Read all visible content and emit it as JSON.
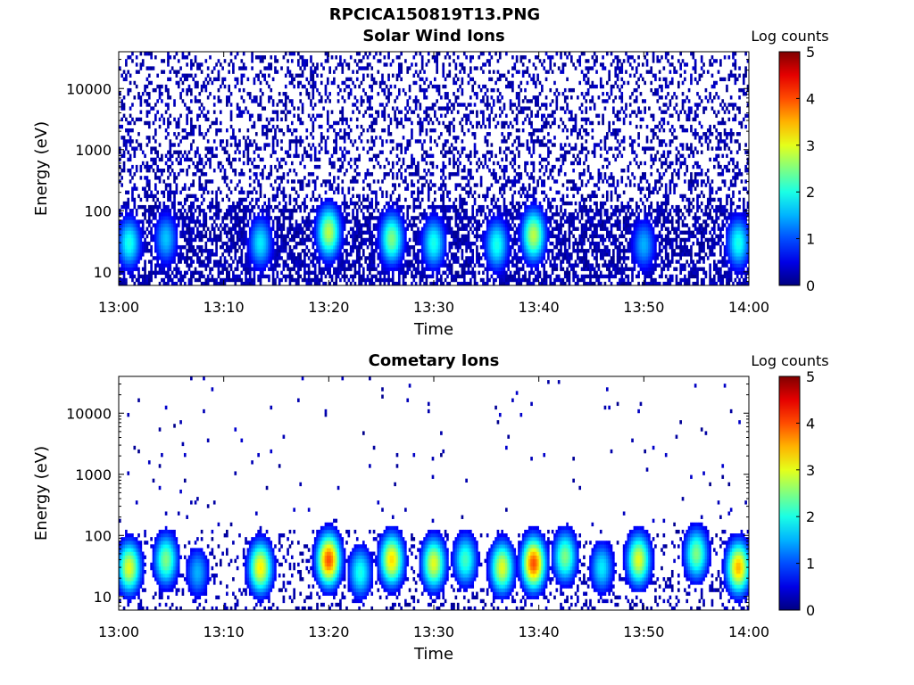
{
  "figure": {
    "title": "RPCICA150819T13.PNG"
  },
  "chart_data": [
    {
      "type": "heatmap",
      "title": "Solar Wind Ions",
      "xlabel": "Time",
      "ylabel": "Energy (eV)",
      "x_ticks": [
        "13:00",
        "13:10",
        "13:20",
        "13:30",
        "13:40",
        "13:50",
        "14:00"
      ],
      "xlim": [
        "13:00",
        "14:00"
      ],
      "y_scale": "log",
      "y_ticks": [
        "10",
        "100",
        "1000",
        "10000"
      ],
      "ylim": [
        6,
        40000
      ],
      "colorbar": {
        "label": "Log counts",
        "range": [
          0,
          5
        ],
        "ticks": [
          "0",
          "1",
          "2",
          "3",
          "4",
          "5"
        ],
        "colormap": "jet"
      },
      "features": {
        "background_density": 0.34,
        "low_energy_bursts": [
          {
            "time_min": 1,
            "energy_eV": 30,
            "peak_log_counts": 2.0
          },
          {
            "time_min": 4.5,
            "energy_eV": 35,
            "peak_log_counts": 1.6
          },
          {
            "time_min": 13.5,
            "energy_eV": 30,
            "peak_log_counts": 1.8
          },
          {
            "time_min": 20,
            "energy_eV": 45,
            "peak_log_counts": 2.8
          },
          {
            "time_min": 26,
            "energy_eV": 35,
            "peak_log_counts": 2.5
          },
          {
            "time_min": 30,
            "energy_eV": 30,
            "peak_log_counts": 2.0
          },
          {
            "time_min": 36,
            "energy_eV": 28,
            "peak_log_counts": 2.0
          },
          {
            "time_min": 39.5,
            "energy_eV": 40,
            "peak_log_counts": 2.8
          },
          {
            "time_min": 50,
            "energy_eV": 28,
            "peak_log_counts": 1.5
          },
          {
            "time_min": 59,
            "energy_eV": 30,
            "peak_log_counts": 2.0
          }
        ]
      }
    },
    {
      "type": "heatmap",
      "title": "Cometary Ions",
      "xlabel": "Time",
      "ylabel": "Energy (eV)",
      "x_ticks": [
        "13:00",
        "13:10",
        "13:20",
        "13:30",
        "13:40",
        "13:50",
        "14:00"
      ],
      "xlim": [
        "13:00",
        "14:00"
      ],
      "y_scale": "log",
      "y_ticks": [
        "10",
        "100",
        "1000",
        "10000"
      ],
      "ylim": [
        6,
        40000
      ],
      "colorbar": {
        "label": "Log counts",
        "range": [
          0,
          5
        ],
        "ticks": [
          "0",
          "1",
          "2",
          "3",
          "4",
          "5"
        ],
        "colormap": "jet"
      },
      "features": {
        "background_density": 0.25,
        "high_energy_scatter_density": 0.012,
        "low_energy_bursts": [
          {
            "time_min": 1,
            "energy_eV": 30,
            "peak_log_counts": 3.0
          },
          {
            "time_min": 4.5,
            "energy_eV": 40,
            "peak_log_counts": 2.5
          },
          {
            "time_min": 7.5,
            "energy_eV": 25,
            "peak_log_counts": 1.5
          },
          {
            "time_min": 13.5,
            "energy_eV": 30,
            "peak_log_counts": 3.2
          },
          {
            "time_min": 20,
            "energy_eV": 40,
            "peak_log_counts": 4.0
          },
          {
            "time_min": 23,
            "energy_eV": 25,
            "peak_log_counts": 2.0
          },
          {
            "time_min": 26,
            "energy_eV": 40,
            "peak_log_counts": 3.3
          },
          {
            "time_min": 30,
            "energy_eV": 35,
            "peak_log_counts": 3.0
          },
          {
            "time_min": 33,
            "energy_eV": 40,
            "peak_log_counts": 2.2
          },
          {
            "time_min": 36.5,
            "energy_eV": 30,
            "peak_log_counts": 3.0
          },
          {
            "time_min": 39.5,
            "energy_eV": 35,
            "peak_log_counts": 4.0
          },
          {
            "time_min": 42.5,
            "energy_eV": 45,
            "peak_log_counts": 2.5
          },
          {
            "time_min": 46,
            "energy_eV": 30,
            "peak_log_counts": 1.8
          },
          {
            "time_min": 49.5,
            "energy_eV": 40,
            "peak_log_counts": 3.0
          },
          {
            "time_min": 55,
            "energy_eV": 50,
            "peak_log_counts": 2.5
          },
          {
            "time_min": 59,
            "energy_eV": 30,
            "peak_log_counts": 3.5
          }
        ]
      }
    }
  ]
}
